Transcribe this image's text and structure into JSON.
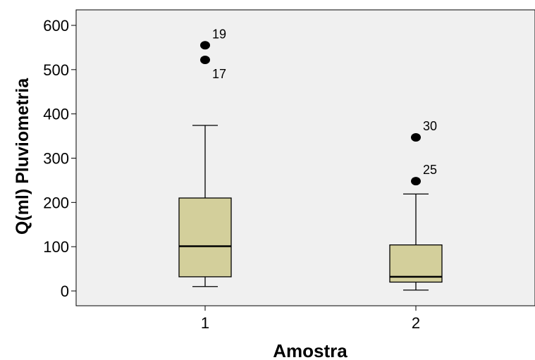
{
  "chart_data": {
    "type": "box",
    "xlabel": "Amostra",
    "ylabel": "Q(ml) Pluviometria",
    "ylim": [
      -30,
      640
    ],
    "yticks": [
      0,
      100,
      200,
      300,
      400,
      500,
      600
    ],
    "categories": [
      "1",
      "2"
    ],
    "grid": false,
    "box_color": "#d3cf9b",
    "plot_background": "#f0f0f0",
    "boxes": [
      {
        "category": "1",
        "whisker_low": 10,
        "q1": 32,
        "median": 101,
        "q3": 210,
        "whisker_high": 374,
        "outliers": [
          {
            "label": "19",
            "value": 555
          },
          {
            "label": "17",
            "value": 522
          }
        ]
      },
      {
        "category": "2",
        "whisker_low": 2,
        "q1": 20,
        "median": 32,
        "q3": 104,
        "whisker_high": 219,
        "outliers": [
          {
            "label": "30",
            "value": 347
          },
          {
            "label": "25",
            "value": 248
          }
        ]
      }
    ]
  }
}
